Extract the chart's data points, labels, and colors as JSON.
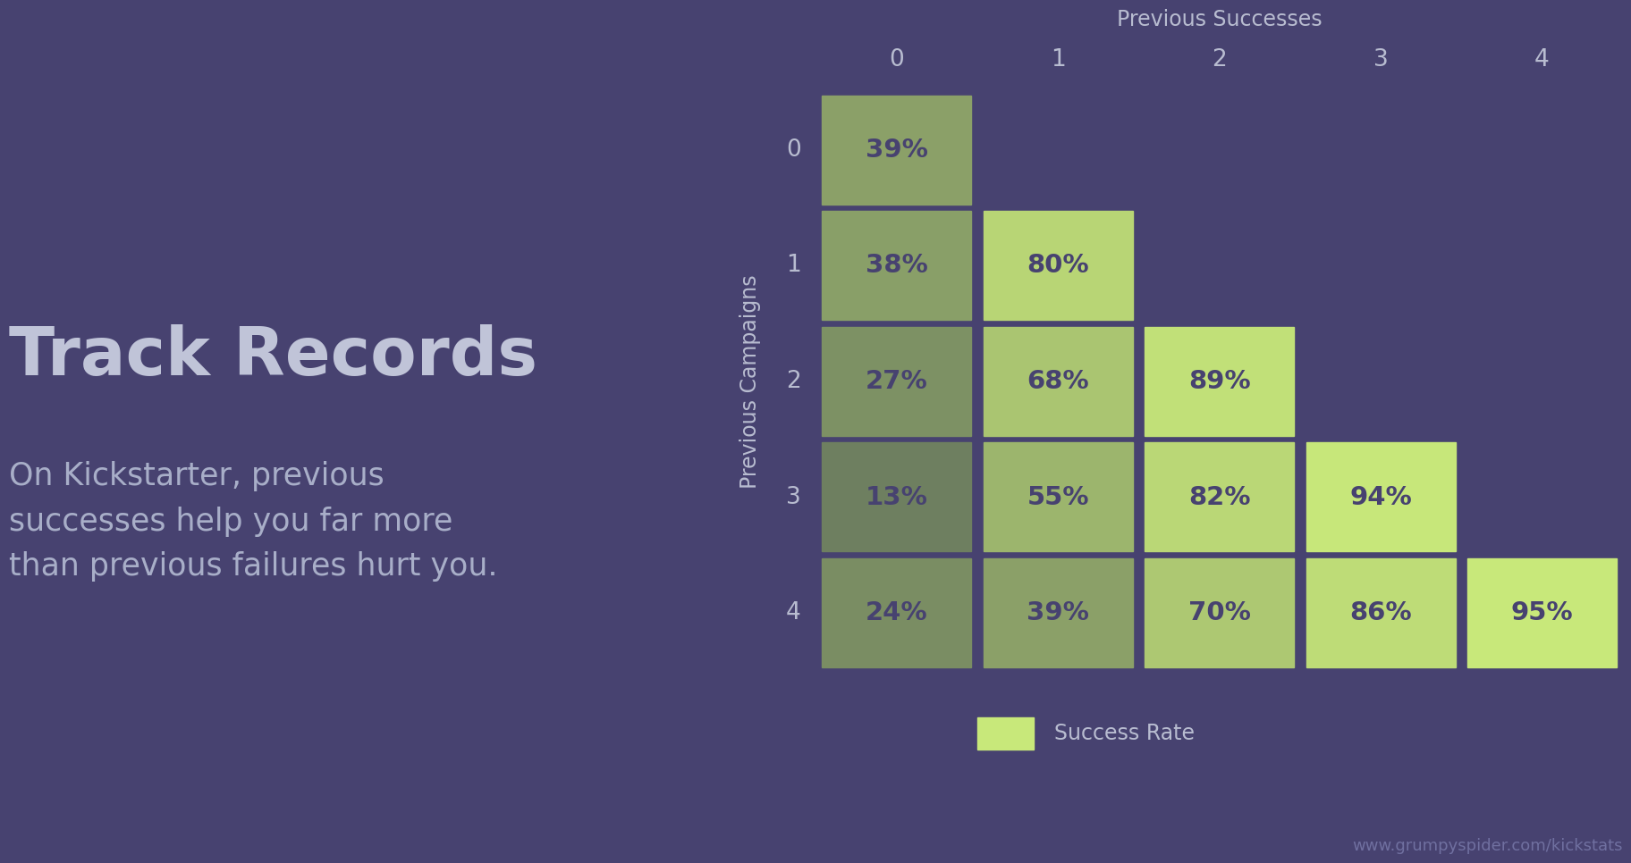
{
  "background_color": "#474270",
  "title_text": "Track Records",
  "subtitle_text": "On Kickstarter, previous\nsuccesses help you far more\nthan previous failures hurt you.",
  "watermark": "www.grumpyspider.com/kickstats",
  "col_header_label": "Previous Successes",
  "row_header_label": "Previous Campaigns",
  "col_labels": [
    "0",
    "1",
    "2",
    "3",
    "4"
  ],
  "row_labels": [
    "0",
    "1",
    "2",
    "3",
    "4"
  ],
  "data": [
    [
      "39%",
      null,
      null,
      null,
      null
    ],
    [
      "38%",
      "80%",
      null,
      null,
      null
    ],
    [
      "27%",
      "68%",
      "89%",
      null,
      null
    ],
    [
      "13%",
      "55%",
      "82%",
      "94%",
      null
    ],
    [
      "24%",
      "39%",
      "70%",
      "86%",
      "95%"
    ]
  ],
  "cell_color_low": "#6e7f60",
  "cell_color_high": "#c8e87a",
  "text_color_cells": "#474270",
  "text_color_headers": "#b8bcd0",
  "text_color_title": "#c0c4d8",
  "text_color_subtitle": "#a8aec8",
  "legend_label": "Success Rate",
  "watermark_color": "#7070a0"
}
